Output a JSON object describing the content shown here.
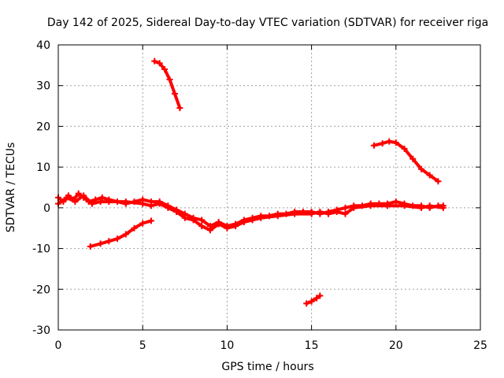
{
  "chart_data": {
    "type": "line",
    "title": "Day 142 of 2025, Sidereal Day-to-day VTEC variation (SDTVAR) for receiver riga",
    "xlabel": "GPS time / hours",
    "ylabel": "SDTVAR / TECUs",
    "xlim": [
      0,
      25
    ],
    "ylim": [
      -30,
      40
    ],
    "xticks": [
      0,
      5,
      10,
      15,
      20,
      25
    ],
    "yticks": [
      -30,
      -20,
      -10,
      0,
      10,
      20,
      30,
      40
    ],
    "xtick_labels": [
      "0",
      "5",
      "10",
      "15",
      "20",
      "25"
    ],
    "ytick_labels": [
      "-30",
      "-20",
      "-10",
      "0",
      "10",
      "20",
      "30",
      "40"
    ],
    "grid": true,
    "legend": "none",
    "series_color": "#ff0000",
    "series": [
      {
        "name": "main-a",
        "points": [
          [
            0.0,
            2.5
          ],
          [
            0.3,
            1.5
          ],
          [
            0.6,
            3.0
          ],
          [
            0.9,
            2.0
          ],
          [
            1.2,
            3.5
          ],
          [
            1.5,
            2.5
          ],
          [
            1.8,
            1.5
          ],
          [
            2.2,
            2.0
          ],
          [
            2.6,
            2.5
          ],
          [
            3.0,
            2.0
          ],
          [
            3.5,
            1.5
          ],
          [
            4.0,
            1.0
          ],
          [
            4.5,
            1.5
          ],
          [
            5.0,
            2.0
          ],
          [
            5.5,
            1.5
          ],
          [
            6.0,
            1.5
          ],
          [
            6.5,
            0.5
          ],
          [
            7.0,
            -0.5
          ],
          [
            7.5,
            -1.5
          ],
          [
            8.0,
            -2.5
          ],
          [
            8.5,
            -3.0
          ],
          [
            9.0,
            -4.5
          ],
          [
            9.5,
            -3.5
          ],
          [
            10.0,
            -4.5
          ],
          [
            10.5,
            -4.0
          ],
          [
            11.0,
            -3.0
          ],
          [
            11.5,
            -2.5
          ],
          [
            12.0,
            -2.0
          ],
          [
            12.5,
            -2.0
          ],
          [
            13.0,
            -1.5
          ],
          [
            13.5,
            -1.5
          ],
          [
            14.0,
            -1.0
          ],
          [
            14.5,
            -1.0
          ],
          [
            15.0,
            -1.0
          ],
          [
            15.5,
            -1.5
          ],
          [
            16.0,
            -1.0
          ],
          [
            16.5,
            -0.5
          ],
          [
            17.0,
            0.0
          ],
          [
            17.5,
            0.5
          ],
          [
            18.0,
            0.5
          ],
          [
            18.5,
            1.0
          ],
          [
            19.0,
            1.0
          ],
          [
            19.5,
            1.0
          ],
          [
            20.0,
            1.5
          ],
          [
            20.5,
            1.0
          ],
          [
            21.0,
            0.5
          ],
          [
            21.5,
            0.5
          ],
          [
            22.0,
            0.0
          ],
          [
            22.5,
            0.5
          ],
          [
            22.8,
            0.5
          ]
        ]
      },
      {
        "name": "main-b",
        "points": [
          [
            0.0,
            1.0
          ],
          [
            0.5,
            2.5
          ],
          [
            1.0,
            1.5
          ],
          [
            1.5,
            3.0
          ],
          [
            2.0,
            1.0
          ],
          [
            2.5,
            1.5
          ],
          [
            3.0,
            1.5
          ],
          [
            4.0,
            1.5
          ],
          [
            5.0,
            1.0
          ],
          [
            5.5,
            0.5
          ],
          [
            6.0,
            1.0
          ],
          [
            6.5,
            0.0
          ],
          [
            7.0,
            -1.0
          ],
          [
            7.5,
            -2.5
          ],
          [
            8.0,
            -3.0
          ],
          [
            8.5,
            -4.5
          ],
          [
            9.0,
            -5.5
          ],
          [
            9.5,
            -4.0
          ],
          [
            10.0,
            -5.0
          ],
          [
            10.5,
            -4.5
          ],
          [
            11.0,
            -3.5
          ],
          [
            11.5,
            -3.0
          ],
          [
            12.0,
            -2.5
          ],
          [
            13.0,
            -2.0
          ],
          [
            14.0,
            -1.5
          ],
          [
            15.0,
            -1.5
          ],
          [
            15.5,
            -1.0
          ],
          [
            16.0,
            -1.5
          ],
          [
            16.5,
            -1.0
          ],
          [
            17.0,
            -1.5
          ],
          [
            17.5,
            0.0
          ],
          [
            18.5,
            0.5
          ],
          [
            19.5,
            0.5
          ],
          [
            20.5,
            0.5
          ],
          [
            21.5,
            0.0
          ],
          [
            22.0,
            0.5
          ],
          [
            22.8,
            0.0
          ]
        ]
      },
      {
        "name": "lower-arc",
        "points": [
          [
            1.9,
            -9.5
          ],
          [
            2.5,
            -8.8
          ],
          [
            3.0,
            -8.2
          ],
          [
            3.5,
            -7.6
          ],
          [
            4.0,
            -6.5
          ],
          [
            4.5,
            -5.0
          ],
          [
            5.0,
            -3.8
          ],
          [
            5.5,
            -3.2
          ]
        ]
      },
      {
        "name": "upper-left",
        "points": [
          [
            5.7,
            36.0
          ],
          [
            6.0,
            35.5
          ],
          [
            6.3,
            34.0
          ],
          [
            6.6,
            31.5
          ],
          [
            6.9,
            28.0
          ],
          [
            7.2,
            24.5
          ]
        ]
      },
      {
        "name": "upper-right",
        "points": [
          [
            18.7,
            15.3
          ],
          [
            19.2,
            15.8
          ],
          [
            19.6,
            16.3
          ],
          [
            20.0,
            16.0
          ],
          [
            20.5,
            14.5
          ],
          [
            21.0,
            12.0
          ],
          [
            21.5,
            9.5
          ],
          [
            22.0,
            8.0
          ],
          [
            22.5,
            6.5
          ]
        ]
      },
      {
        "name": "bottom-fragment",
        "points": [
          [
            14.7,
            -23.5
          ],
          [
            15.0,
            -23.0
          ],
          [
            15.3,
            -22.2
          ],
          [
            15.5,
            -21.6
          ]
        ]
      }
    ]
  }
}
